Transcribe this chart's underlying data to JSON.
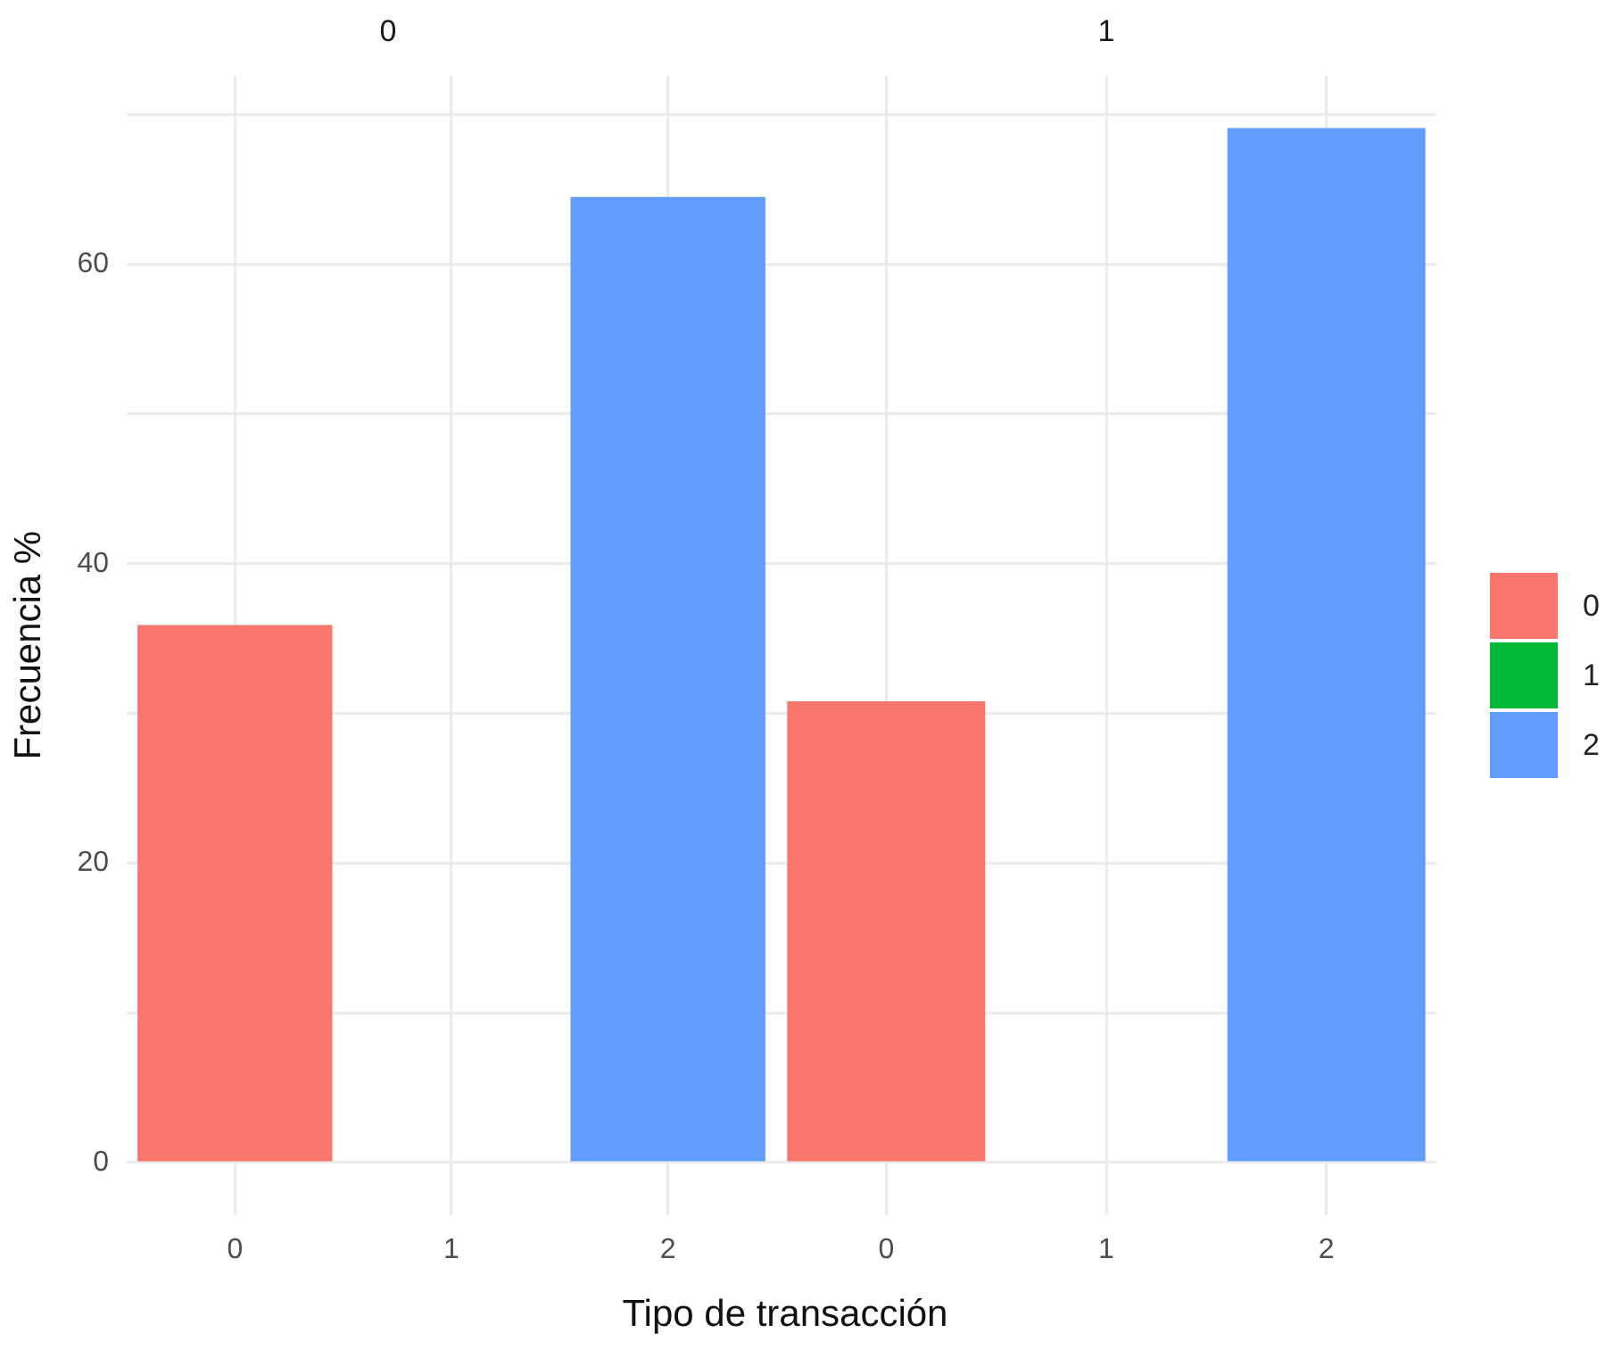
{
  "chart_data": [
    {
      "type": "bar",
      "title": "0",
      "xlabel": "Tipo de transacción",
      "ylabel": "Frecuencia %",
      "categories": [
        "0",
        "1",
        "2"
      ],
      "stacked": true,
      "grid": true,
      "ylim": [
        -3.5,
        72.6
      ],
      "yticks": [
        0,
        {
          "value": 10,
          "label": null
        },
        20,
        {
          "value": 30,
          "label": null
        },
        40,
        {
          "value": 50,
          "label": null
        },
        60,
        {
          "value": 70,
          "label": null
        }
      ],
      "series": [
        {
          "color": "#f8766d",
          "values": [
            35.9,
            null,
            null
          ]
        },
        {
          "color": "#619cff",
          "values": [
            null,
            null,
            64.5
          ]
        }
      ]
    },
    {
      "type": "bar",
      "title": "1",
      "categories": [
        "0",
        "1",
        "2"
      ],
      "stacked": true,
      "grid": true,
      "legend": "right",
      "tick_labels": "x",
      "ylim": [
        -3.5,
        72.6
      ],
      "yticks": [
        0,
        {
          "value": 10,
          "label": null
        },
        20,
        {
          "value": 30,
          "label": null
        },
        40,
        {
          "value": 50,
          "label": null
        },
        60,
        {
          "value": 70,
          "label": null
        }
      ],
      "series": [
        {
          "name": "0",
          "color": "#f8766d",
          "values": [
            30.8,
            null,
            null
          ]
        },
        {
          "name": "1",
          "color": "#00ba38",
          "values": [
            null,
            0,
            null
          ]
        },
        {
          "name": "2",
          "color": "#619cff",
          "values": [
            null,
            null,
            69.1
          ]
        }
      ]
    }
  ]
}
